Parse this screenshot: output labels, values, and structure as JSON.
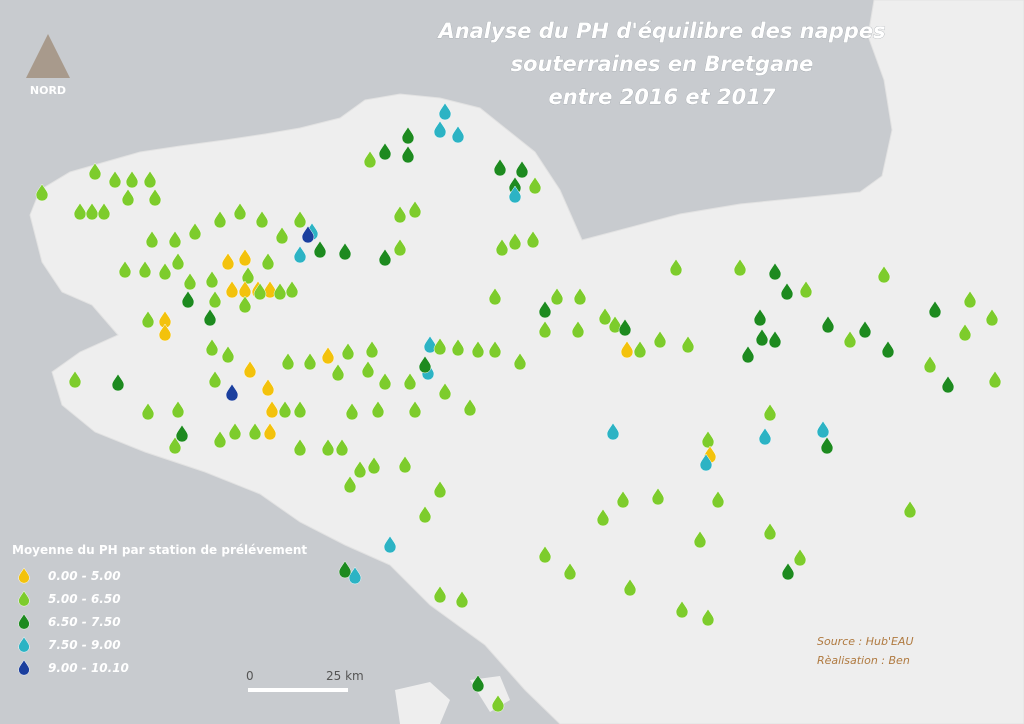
{
  "header": {
    "title_lines": [
      "Analyse du PH d'équilibre des nappes",
      "souterraines en Bretgane",
      "entre 2016 et 2017"
    ]
  },
  "compass": {
    "label": "NORD"
  },
  "legend": {
    "title": "Moyenne du PH par station de prélévement",
    "items": [
      {
        "label": "0.00 - 5.00",
        "color": "#f3c20c"
      },
      {
        "label": "5.00 - 6.50",
        "color": "#7dcc2c"
      },
      {
        "label": "6.50 - 7.50",
        "color": "#1d8a1f"
      },
      {
        "label": "7.50 - 9.00",
        "color": "#2cb3c4"
      },
      {
        "label": "9.00 - 10.10",
        "color": "#1b3f9e"
      }
    ]
  },
  "scale": {
    "start": "0",
    "end": "25 km"
  },
  "credits": {
    "source": "Source : Hub'EAU",
    "author": "Rèalisation : Ben"
  }
}
